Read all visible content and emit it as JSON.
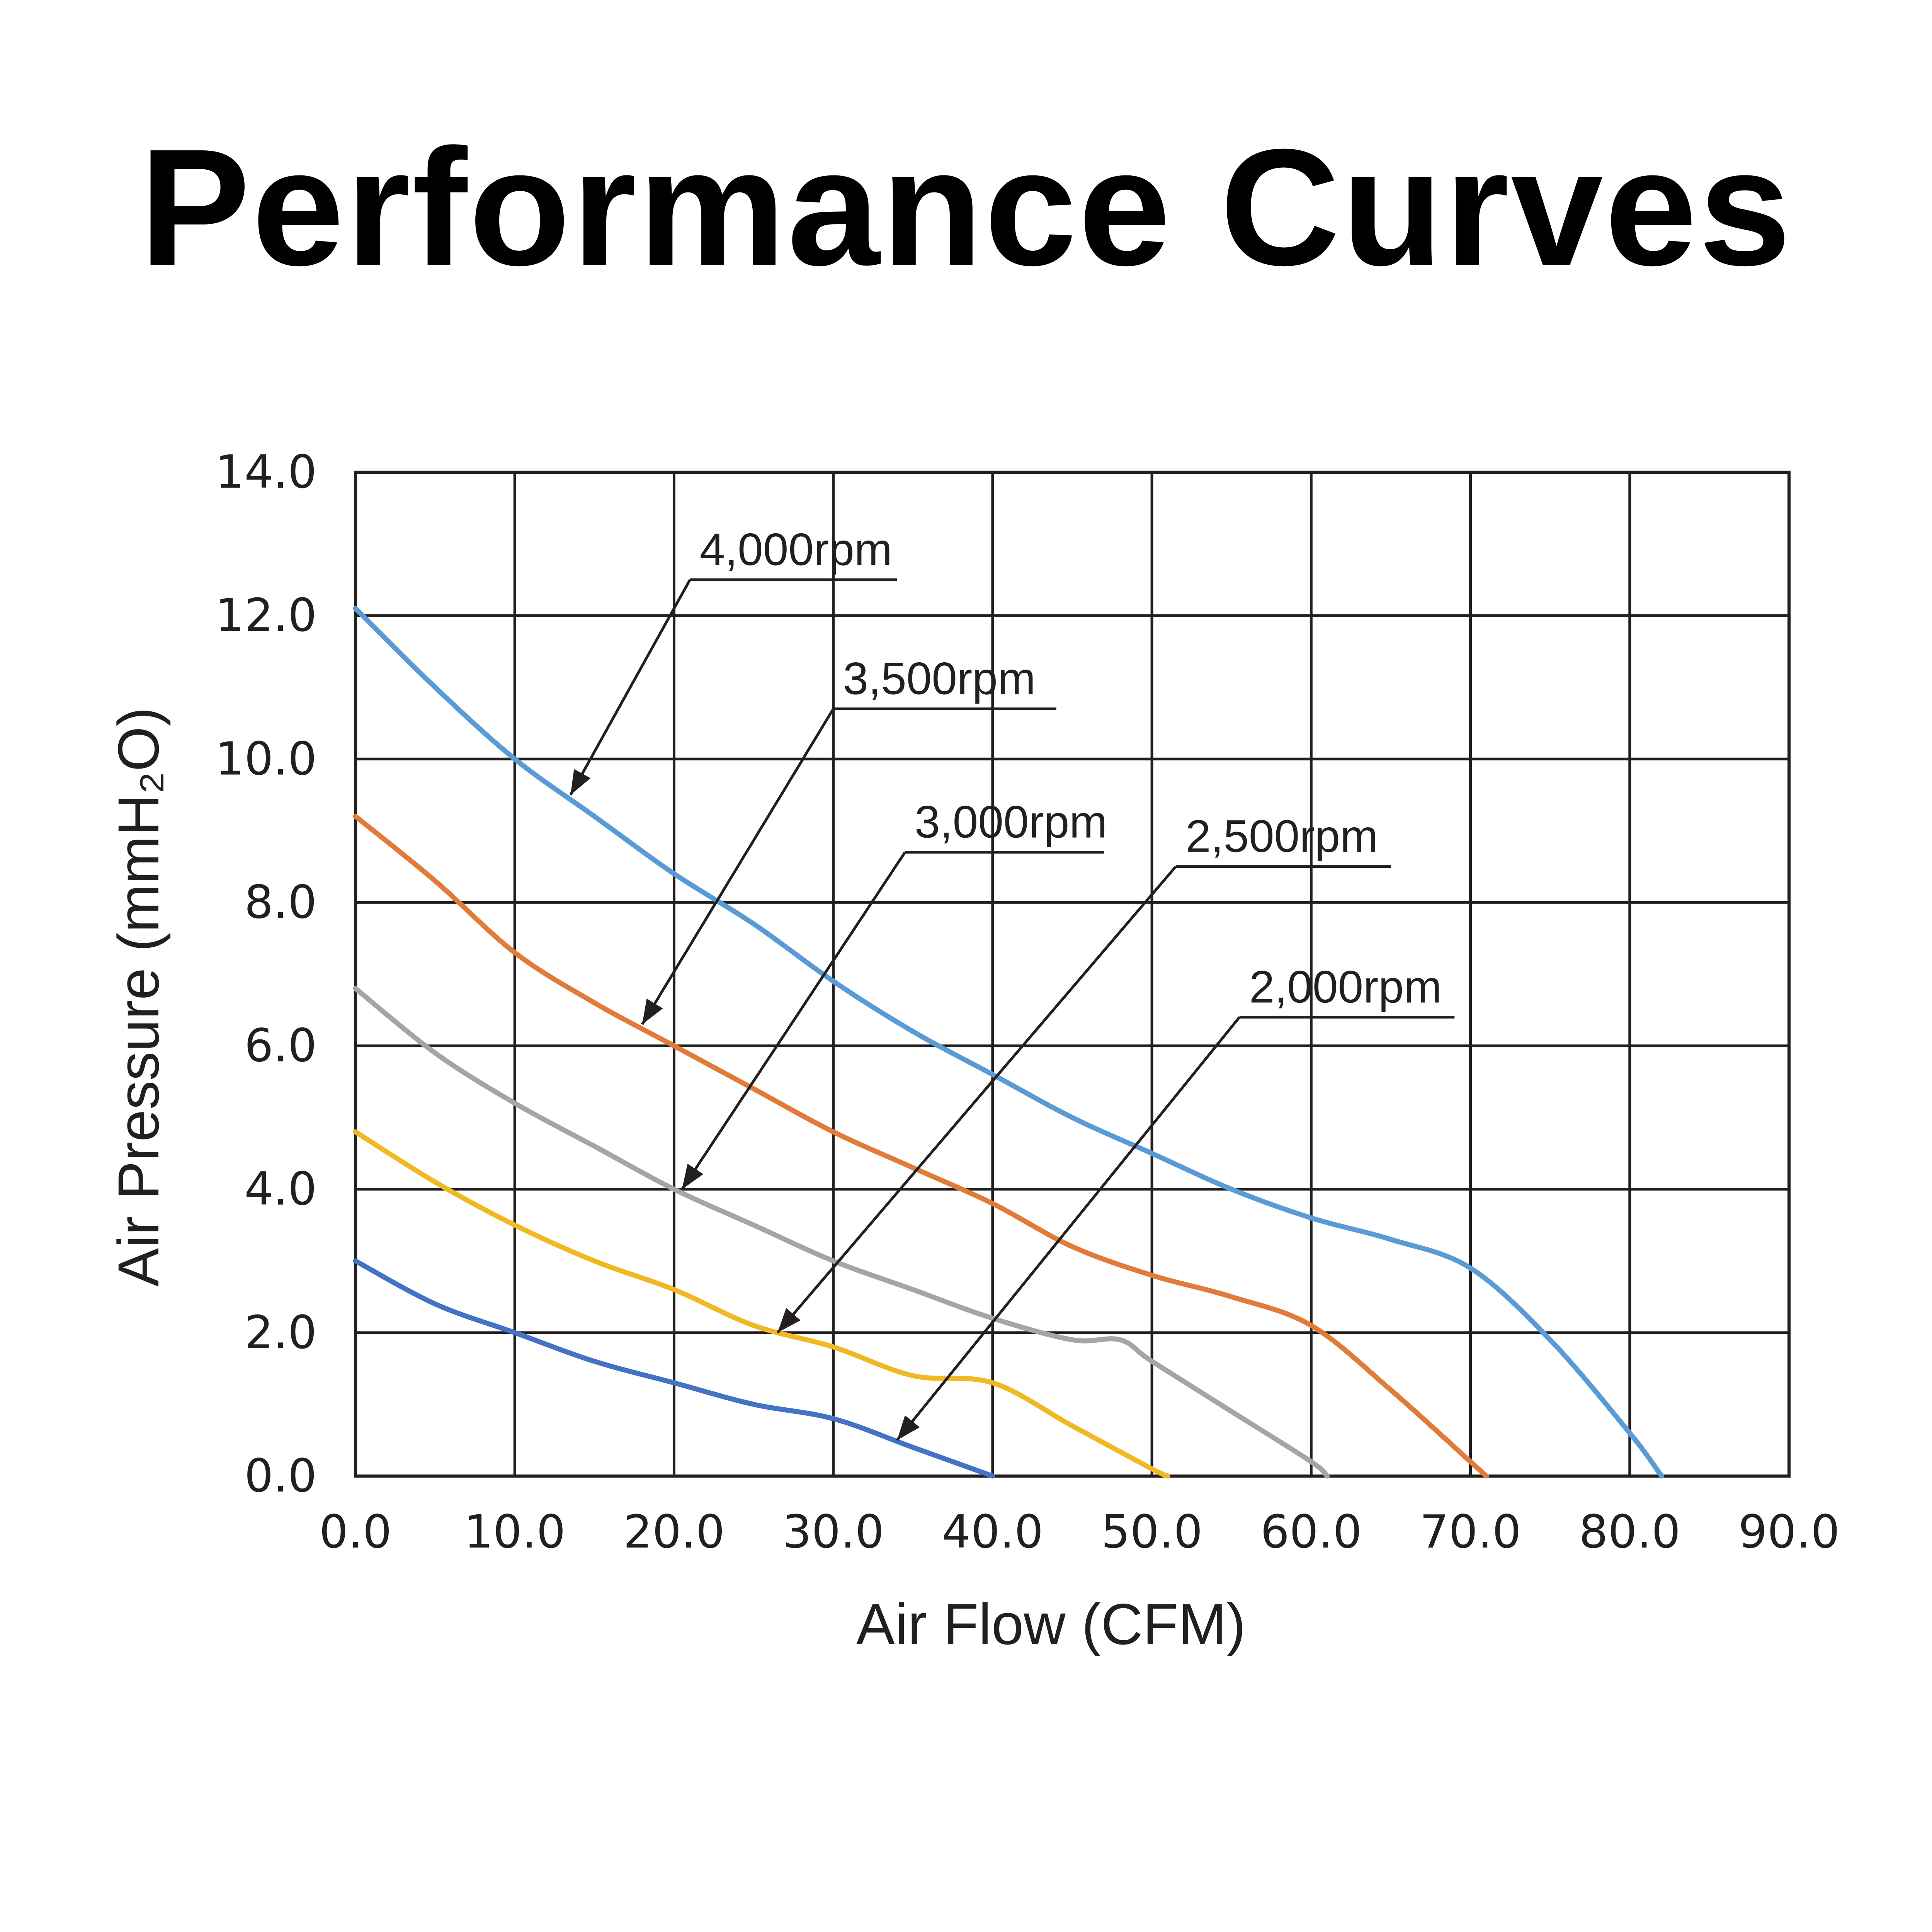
{
  "chart_data": {
    "type": "line",
    "title": "Performance Curves",
    "xlabel": "Air Flow (CFM)",
    "ylabel": "Air Pressure (mmH₂O)",
    "xlim": [
      0,
      90
    ],
    "ylim": [
      0,
      14
    ],
    "xticks": [
      "0.0",
      "10.0",
      "20.0",
      "30.0",
      "40.0",
      "50.0",
      "60.0",
      "70.0",
      "80.0",
      "90.0"
    ],
    "yticks": [
      "0.0",
      "2.0",
      "4.0",
      "6.0",
      "8.0",
      "10.0",
      "12.0",
      "14.0"
    ],
    "grid": true,
    "series": [
      {
        "name": "4,000rpm",
        "color": "#5b9bd5",
        "x": [
          0,
          5,
          10,
          15,
          20,
          25,
          30,
          35,
          40,
          45,
          50,
          55,
          60,
          65,
          70,
          75,
          80,
          82
        ],
        "y": [
          12.1,
          11.0,
          10.0,
          9.2,
          8.4,
          7.7,
          6.9,
          6.2,
          5.6,
          5.0,
          4.5,
          4.0,
          3.6,
          3.3,
          2.9,
          1.9,
          0.6,
          0.0
        ]
      },
      {
        "name": "3,500rpm",
        "color": "#e07b39",
        "x": [
          0,
          5,
          10,
          15,
          20,
          25,
          30,
          35,
          40,
          45,
          50,
          55,
          60,
          65,
          70,
          71
        ],
        "y": [
          9.2,
          8.3,
          7.3,
          6.6,
          6.0,
          5.4,
          4.8,
          4.3,
          3.8,
          3.2,
          2.8,
          2.5,
          2.1,
          1.2,
          0.2,
          0.0
        ]
      },
      {
        "name": "3,000rpm",
        "color": "#a5a5a5",
        "x": [
          0,
          5,
          10,
          15,
          20,
          25,
          30,
          35,
          40,
          45,
          48,
          50,
          55,
          60,
          61
        ],
        "y": [
          6.8,
          5.9,
          5.2,
          4.6,
          4.0,
          3.5,
          3.0,
          2.6,
          2.2,
          1.9,
          1.9,
          1.6,
          0.9,
          0.2,
          0.0
        ]
      },
      {
        "name": "2,500rpm",
        "color": "#f0b923",
        "x": [
          0,
          5,
          10,
          15,
          20,
          25,
          30,
          35,
          40,
          45,
          50,
          51
        ],
        "y": [
          4.8,
          4.1,
          3.5,
          3.0,
          2.6,
          2.1,
          1.8,
          1.4,
          1.3,
          0.7,
          0.1,
          0.0
        ]
      },
      {
        "name": "2,000rpm",
        "color": "#4472c4",
        "x": [
          0,
          5,
          10,
          15,
          20,
          25,
          30,
          35,
          40
        ],
        "y": [
          3.0,
          2.4,
          2.0,
          1.6,
          1.3,
          1.0,
          0.8,
          0.4,
          0.0
        ]
      }
    ],
    "annotations": [
      {
        "text": "4,000rpm",
        "series": 0,
        "point": [
          13.5,
          9.5
        ],
        "label_at": [
          21,
          12.5
        ],
        "line_end_x": 34
      },
      {
        "text": "3,500rpm",
        "series": 1,
        "point": [
          18,
          6.3
        ],
        "label_at": [
          30,
          10.7
        ],
        "line_end_x": 44
      },
      {
        "text": "3,000rpm",
        "series": 2,
        "point": [
          20.5,
          4.0
        ],
        "label_at": [
          34.5,
          8.7
        ],
        "line_end_x": 47
      },
      {
        "text": "2,500rpm",
        "series": 3,
        "point": [
          26.5,
          2.0
        ],
        "label_at": [
          51.5,
          8.5
        ],
        "line_end_x": 65
      },
      {
        "text": "2,000rpm",
        "series": 4,
        "point": [
          34,
          0.5
        ],
        "label_at": [
          55.5,
          6.4
        ],
        "line_end_x": 69
      }
    ]
  }
}
